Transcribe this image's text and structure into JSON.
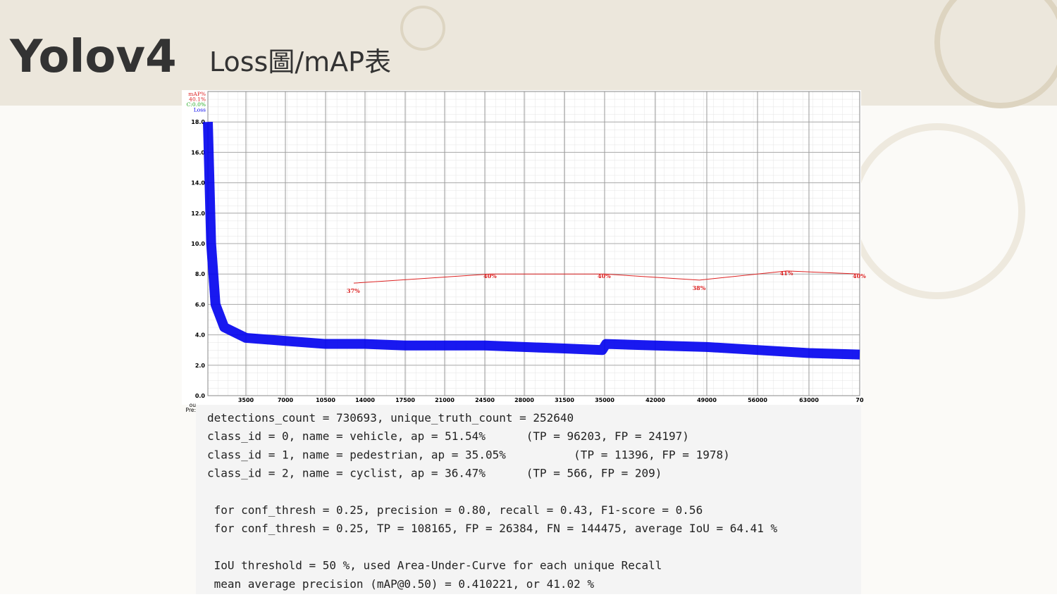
{
  "header": {
    "title": "Yolov4",
    "subtitle": "Loss圖/mAP表"
  },
  "chart_data": {
    "type": "line",
    "legend_labels": [
      "mAP%",
      "40.1%",
      "C:0.0%",
      "Loss"
    ],
    "cropped_labels": [
      "ou",
      "Pre:"
    ],
    "xlim": [
      0,
      70000
    ],
    "xticks": [
      3500,
      7000,
      10500,
      14000,
      17500,
      21000,
      24500,
      28000,
      31500,
      35000,
      42000,
      49000,
      56000,
      63000,
      {
        "value": 70000,
        "label": "70"
      }
    ],
    "ylim": [
      0,
      20
    ],
    "yticks": [
      {
        "value": 0,
        "label": "0.0"
      },
      {
        "value": 2,
        "label": "2.0"
      },
      {
        "value": 4,
        "label": "4.0"
      },
      {
        "value": 6,
        "label": "6.0"
      },
      {
        "value": 8,
        "label": "8.0"
      },
      {
        "value": 10,
        "label": "10.0"
      },
      {
        "value": 12,
        "label": "12.0"
      },
      {
        "value": 14,
        "label": "14.0"
      },
      {
        "value": 16,
        "label": "16.0"
      },
      {
        "value": 18,
        "label": "18.0"
      }
    ],
    "y2lim": [
      0,
      100
    ],
    "grid": true,
    "series": [
      {
        "name": "Loss",
        "color": "#0000ee",
        "x": [
          0,
          300,
          700,
          1500,
          3500,
          7000,
          10500,
          14000,
          17500,
          21000,
          24500,
          28000,
          31500,
          34800,
          35200,
          42000,
          49000,
          56000,
          63000,
          70000
        ],
        "values": [
          18,
          10,
          6,
          4.5,
          3.8,
          3.6,
          3.4,
          3.4,
          3.3,
          3.3,
          3.3,
          3.2,
          3.1,
          3.0,
          3.4,
          3.3,
          3.2,
          3.0,
          2.8,
          2.7
        ]
      },
      {
        "name": "mAP%",
        "color": "#dd2222",
        "axis": "y2",
        "x": [
          13000,
          25000,
          35000,
          48000,
          60000,
          70000
        ],
        "values": [
          37,
          40,
          40,
          38,
          41,
          40
        ],
        "value_labels": [
          "37%",
          "40%",
          "40%",
          "38%",
          "41%",
          "40%"
        ]
      }
    ]
  },
  "console": {
    "summary": [
      "detections_count = 730693, unique_truth_count = 252640",
      "class_id = 0, name = vehicle, ap = 51.54%      (TP = 96203, FP = 24197)",
      "class_id = 1, name = pedestrian, ap = 35.05%          (TP = 11396, FP = 1978)",
      "class_id = 2, name = cyclist, ap = 36.47%      (TP = 566, FP = 209)"
    ],
    "thresholds": [
      " for conf_thresh = 0.25, precision = 0.80, recall = 0.43, F1-score = 0.56",
      " for conf_thresh = 0.25, TP = 108165, FP = 26384, FN = 144475, average IoU = 64.41 %"
    ],
    "map": [
      " IoU threshold = 50 %, used Area-Under-Curve for each unique Recall",
      " mean average precision (mAP@0.50) = 0.410221, or 41.02 %"
    ]
  }
}
